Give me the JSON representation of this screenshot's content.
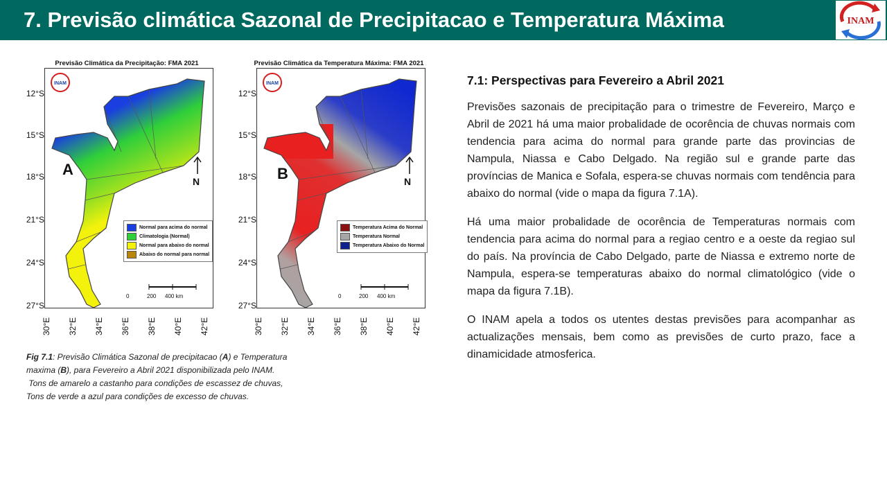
{
  "header": {
    "title": "7. Previsão climática Sazonal de Precipitacao e Temperatura Máxima",
    "logo_text": "INAM",
    "bg_color": "#00695f"
  },
  "map_a": {
    "title": "Previsão Climática da Precipitação: FMA 2021",
    "letter": "A",
    "north": "N",
    "logo_text": "INAM",
    "lat_labels": [
      "12°S",
      "15°S",
      "18°S",
      "21°S",
      "24°S",
      "27°S"
    ],
    "lon_labels": [
      "30°E",
      "32°E",
      "34°E",
      "36°E",
      "38°E",
      "40°E",
      "42°E"
    ],
    "legend": [
      {
        "label": "Normal para acima do normal",
        "color": "#1a3fe0"
      },
      {
        "label": "Climatologia (Normal)",
        "color": "#2fcf3a"
      },
      {
        "label": "Normal para abaixo do normal",
        "color": "#f2f20c"
      },
      {
        "label": "Abaixo do normal para normal",
        "color": "#b8860b"
      }
    ],
    "scale": [
      "0",
      "200",
      "400 km"
    ]
  },
  "map_b": {
    "title": "Previsão Climática da Temperatura Máxima: FMA 2021",
    "letter": "B",
    "north": "N",
    "logo_text": "INAM",
    "lat_labels": [
      "12°S",
      "15°S",
      "18°S",
      "21°S",
      "24°S",
      "27°S"
    ],
    "lon_labels": [
      "30°E",
      "32°E",
      "34°E",
      "36°E",
      "38°E",
      "40°E",
      "42°E"
    ],
    "legend": [
      {
        "label": "Temperatura Acima do Normal",
        "color": "#8b1010"
      },
      {
        "label": "Temperatura Normal",
        "color": "#a6a6a6"
      },
      {
        "label": "Temperatura Abaixo do Normal",
        "color": "#10208b"
      }
    ],
    "scale": [
      "0",
      "200",
      "400 km"
    ]
  },
  "caption": {
    "label": "Fig 7.1",
    "line1_a": ": Previsão Climática Sazonal de precipitacao (",
    "line1_b": "A",
    "line1_c": ") e Temperatura",
    "line2_a": "maxima (",
    "line2_b": "B",
    "line2_c": "), para Fevereiro a Abril 2021 disponibilizada pelo INAM.",
    "line3": "Tons de amarelo a castanho para condições de escassez de chuvas,",
    "line4": "Tons de verde a azul para condições de excesso de chuvas."
  },
  "section": {
    "heading": "7.1: Perspectivas para  Fevereiro a Abril 2021",
    "para1": "Previsões sazonais de precipitação para o trimestre de Fevereiro, Março e Abril de 2021 há uma maior probalidade de ocorência de chuvas normais com tendencia para acima do normal para grande parte das provincias de Nampula, Niassa e Cabo Delgado. Na região sul e grande parte das províncias de Manica e Sofala, espera-se chuvas normais com tendência para abaixo do normal (vide o mapa da figura 7.1A).",
    "para2": "Há uma maior probalidade de ocorência de Temperaturas normais com tendencia para acima do normal para a regiao centro e a oeste da regiao sul do país. Na província de Cabo Delgado, parte de Niassa e extremo norte de Nampula, espera-se temperaturas abaixo do normal climatológico (vide o mapa da figura 7.1B).",
    "para3": "O INAM apela a todos os utentes destas previsões para acompanhar as actualizações mensais, bem como as previsões de curto prazo, face a dinamicidade atmosferica."
  }
}
